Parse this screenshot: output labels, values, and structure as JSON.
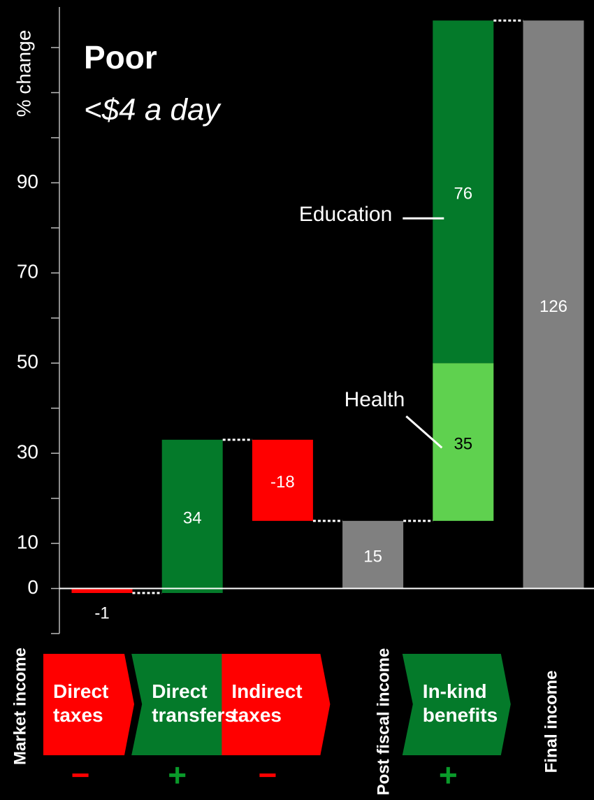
{
  "chart_data": {
    "type": "waterfall",
    "title": "Poor",
    "subtitle": "<$4 a day",
    "y_label": "% change",
    "ylim": [
      -10,
      129
    ],
    "yticks": [
      0,
      10,
      30,
      50,
      70,
      90
    ],
    "minor_yticks": [
      -10,
      20,
      40,
      60,
      80,
      100,
      110,
      120
    ],
    "stages": [
      {
        "label": "Market income",
        "kind": "total",
        "segments": []
      },
      {
        "label": "Direct taxes",
        "kind": "change",
        "sign": "−",
        "sign_color": "#ff0000",
        "color": "#ff0000",
        "segments": [
          {
            "value": -1,
            "color": "#ff0000",
            "label_color": "#ffffff"
          }
        ]
      },
      {
        "label": "Direct transfers",
        "kind": "change",
        "sign": "+",
        "sign_color": "#0a9a2a",
        "color": "#047a2a",
        "segments": [
          {
            "value": 34,
            "color": "#047a2a",
            "label_color": "#ffffff"
          }
        ]
      },
      {
        "label": "Indirect taxes",
        "kind": "change",
        "sign": "−",
        "sign_color": "#ff0000",
        "color": "#ff0000",
        "segments": [
          {
            "value": -18,
            "color": "#ff0000",
            "label_color": "#ffffff"
          }
        ]
      },
      {
        "label": "Post fiscal income",
        "kind": "total",
        "segments": [
          {
            "value": 15,
            "color": "#808080",
            "label_color": "#ffffff"
          }
        ]
      },
      {
        "label": "In-kind benefits",
        "kind": "change",
        "sign": "+",
        "sign_color": "#0a9a2a",
        "color": "#047a2a",
        "segments": [
          {
            "name": "Health",
            "value": 35,
            "color": "#5fd14f",
            "label_color": "#000000"
          },
          {
            "name": "Education",
            "value": 76,
            "color": "#047a2a",
            "label_color": "#ffffff"
          }
        ]
      },
      {
        "label": "Final income",
        "kind": "total",
        "segments": [
          {
            "value": 126,
            "color": "#808080",
            "label_color": "#ffffff"
          }
        ]
      }
    ]
  }
}
